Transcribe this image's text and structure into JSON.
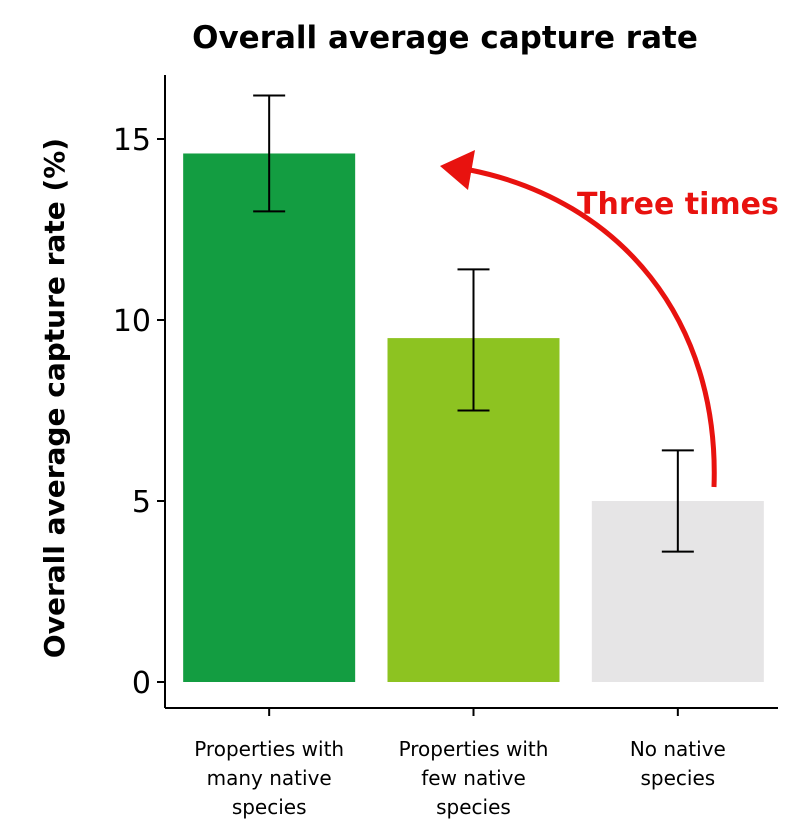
{
  "chart_data": {
    "type": "bar",
    "title": "Overall average capture rate",
    "ylabel": "Overall average capture rate (%)",
    "xlabel": "",
    "ylim": [
      0,
      16.5
    ],
    "yticks": [
      0,
      5,
      10,
      15
    ],
    "categories": [
      [
        "Properties with",
        "many native",
        "species"
      ],
      [
        "Properties with",
        "few native",
        "species"
      ],
      [
        "No native",
        "species"
      ]
    ],
    "values": [
      14.6,
      9.5,
      5.0
    ],
    "error_low": [
      13.0,
      7.5,
      3.6
    ],
    "error_high": [
      16.2,
      11.4,
      6.4
    ],
    "colors": [
      "#139d41",
      "#8dc321",
      "#e6e5e6"
    ],
    "annotation": {
      "text": "Three times",
      "color": "#e8120f",
      "from_category": 2,
      "to_category": 0
    },
    "grid": false
  }
}
